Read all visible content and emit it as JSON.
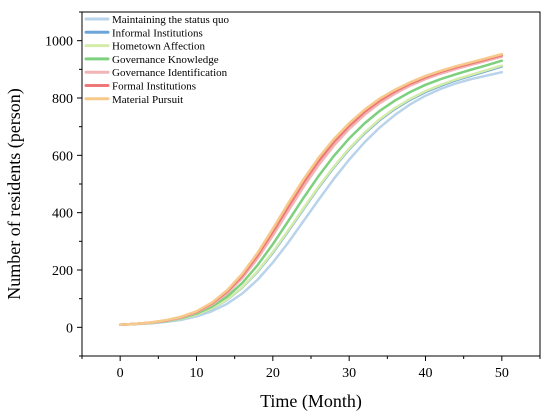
{
  "chart_data": {
    "type": "line",
    "xlabel": "Time (Month)",
    "ylabel": "Number of residents (person)",
    "xlim": [
      -5,
      55
    ],
    "ylim": [
      -100,
      1100
    ],
    "xticks": [
      0,
      10,
      20,
      30,
      40,
      50
    ],
    "yticks": [
      0,
      200,
      400,
      600,
      800,
      1000
    ],
    "grid": false,
    "legend_position": "top-left",
    "x": [
      0,
      2,
      4,
      6,
      8,
      10,
      12,
      14,
      16,
      18,
      20,
      22,
      24,
      26,
      28,
      30,
      32,
      34,
      36,
      38,
      40,
      42,
      44,
      46,
      48,
      50
    ],
    "series": [
      {
        "name": "Maintaining the status quo",
        "color": "#b9d3ea",
        "values": [
          9,
          11,
          14,
          19,
          26,
          38,
          56,
          82,
          118,
          166,
          226,
          295,
          370,
          445,
          518,
          585,
          645,
          697,
          741,
          778,
          808,
          832,
          851,
          866,
          878,
          890
        ]
      },
      {
        "name": "Informal Institutions",
        "color": "#6ea5d8",
        "values": [
          9,
          12,
          15,
          21,
          30,
          44,
          65,
          96,
          139,
          194,
          260,
          335,
          412,
          488,
          558,
          621,
          676,
          723,
          762,
          794,
          821,
          843,
          862,
          878,
          894,
          910
        ]
      },
      {
        "name": "Hometown Affection",
        "color": "#d4ecaa",
        "values": [
          9,
          12,
          15,
          21,
          30,
          44,
          66,
          97,
          140,
          196,
          263,
          338,
          415,
          491,
          561,
          624,
          679,
          726,
          765,
          797,
          824,
          846,
          865,
          881,
          897,
          913
        ]
      },
      {
        "name": "Governance Knowledge",
        "color": "#7dd07d",
        "values": [
          9,
          12,
          16,
          22,
          32,
          48,
          72,
          107,
          155,
          217,
          290,
          370,
          451,
          528,
          598,
          659,
          711,
          755,
          791,
          821,
          846,
          866,
          883,
          899,
          914,
          930
        ]
      },
      {
        "name": "Governance Identification",
        "color": "#f2b5b5",
        "values": [
          9,
          12,
          16,
          23,
          34,
          52,
          79,
          118,
          172,
          240,
          320,
          405,
          489,
          566,
          634,
          692,
          741,
          782,
          815,
          843,
          866,
          885,
          901,
          916,
          930,
          944
        ]
      },
      {
        "name": "Formal Institutions",
        "color": "#ee7777",
        "values": [
          9,
          12,
          17,
          24,
          36,
          54,
          83,
          124,
          180,
          251,
          333,
          420,
          504,
          580,
          647,
          703,
          751,
          791,
          823,
          850,
          872,
          891,
          907,
          921,
          935,
          949
        ]
      },
      {
        "name": "Material Pursuit",
        "color": "#f7c98a",
        "values": [
          9,
          12,
          17,
          25,
          37,
          56,
          86,
          129,
          187,
          260,
          344,
          432,
          516,
          592,
          657,
          712,
          759,
          798,
          829,
          855,
          877,
          895,
          911,
          925,
          939,
          953
        ]
      }
    ]
  }
}
